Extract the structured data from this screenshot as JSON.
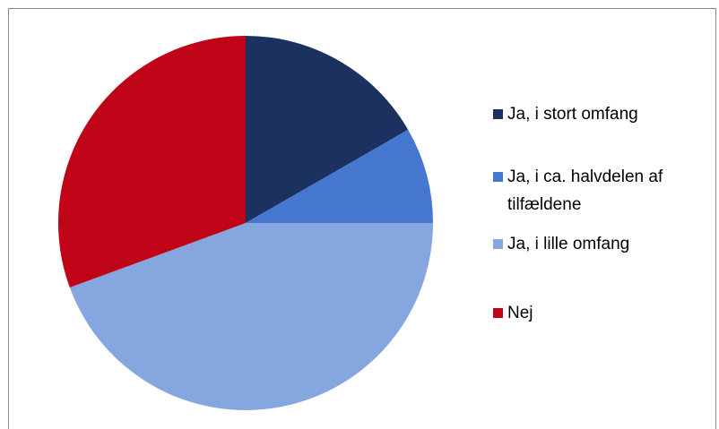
{
  "chart_data": {
    "type": "pie",
    "categories": [
      "Ja, i stort omfang",
      "Ja, i ca. halvdelen af tilfældene",
      "Ja, i lille omfang",
      "Nej"
    ],
    "values": [
      16.7,
      8.3,
      44.4,
      30.6
    ],
    "colors": [
      "#1b3261",
      "#4677cf",
      "#86a6df",
      "#bf0418"
    ]
  }
}
